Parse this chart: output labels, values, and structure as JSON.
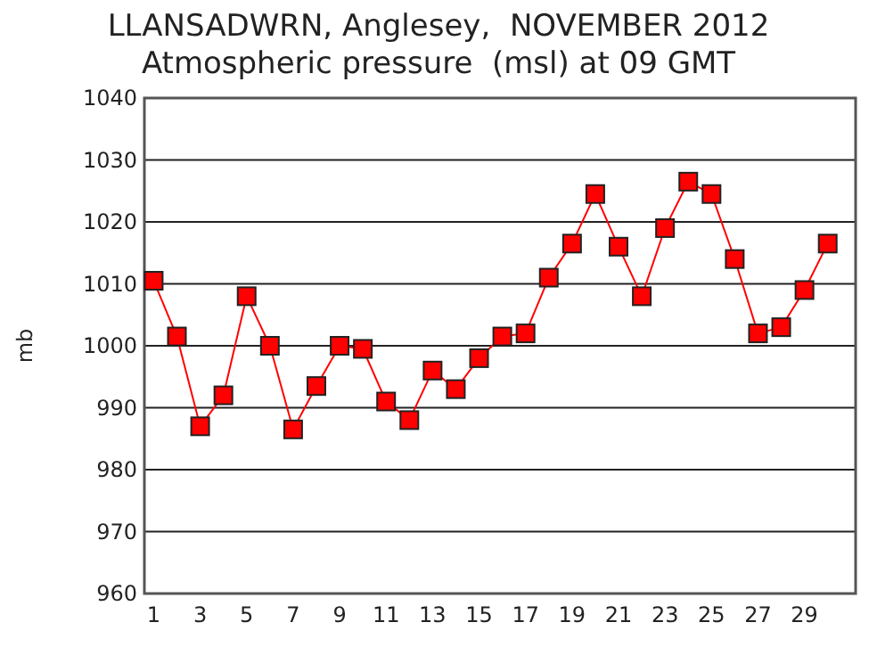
{
  "chart_data": {
    "type": "line",
    "title": "LLANSADWRN, Anglesey,  NOVEMBER 2012",
    "subtitle": "Atmospheric pressure  (msl) at 09 GMT",
    "ylabel": "mb",
    "x": [
      1,
      2,
      3,
      4,
      5,
      6,
      7,
      8,
      9,
      10,
      11,
      12,
      13,
      14,
      15,
      16,
      17,
      18,
      19,
      20,
      21,
      22,
      23,
      24,
      25,
      26,
      27,
      28,
      29,
      30
    ],
    "series": [
      {
        "color": "#ff0000",
        "values": [
          1010.5,
          1001.5,
          987,
          992,
          1008,
          1000,
          986.5,
          993.5,
          1000,
          999.5,
          991,
          988,
          996,
          993,
          998,
          1001.5,
          1002,
          1011,
          1016.5,
          1024.5,
          1016,
          1008,
          1019,
          1026.5,
          1024.5,
          1014,
          1002,
          1003,
          1009,
          1016.5
        ]
      }
    ],
    "xlim": [
      0.6,
      31.2
    ],
    "xticks": [
      1,
      3,
      5,
      7,
      9,
      11,
      13,
      15,
      17,
      19,
      21,
      23,
      25,
      27,
      29
    ],
    "ylim": [
      960,
      1040
    ],
    "yticks": [
      960,
      970,
      980,
      990,
      1000,
      1010,
      1020,
      1030,
      1040
    ],
    "grid": "y",
    "marker": "square",
    "line_style": "solid"
  }
}
